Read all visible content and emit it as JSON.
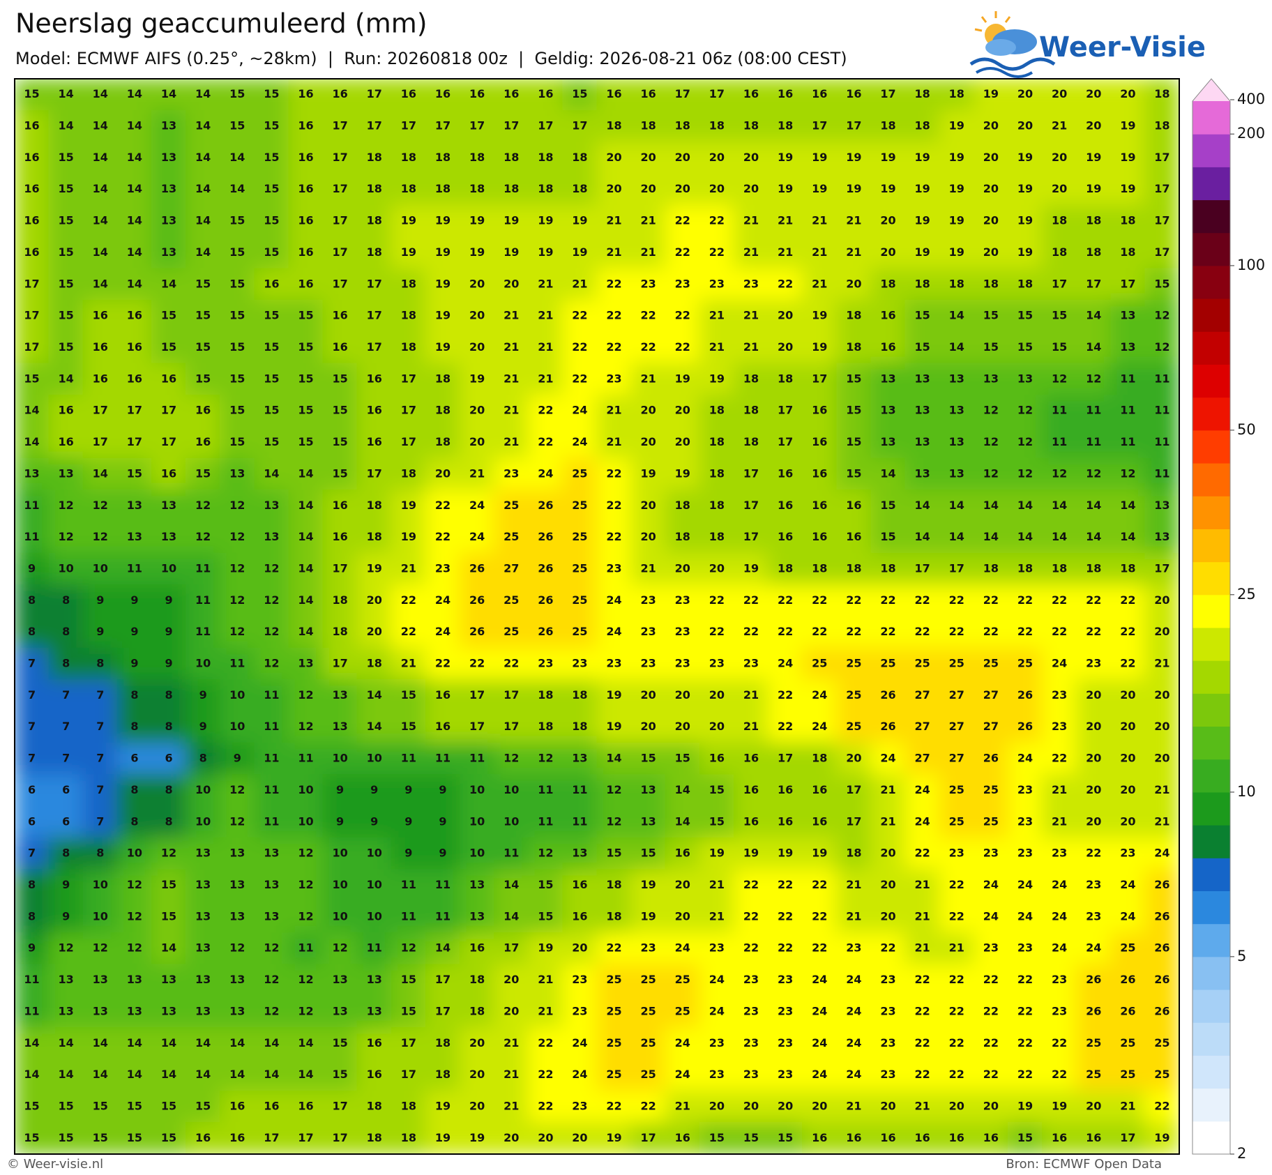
{
  "header": {
    "title": "Neerslag geaccumuleerd (mm)",
    "subtitle": "Model: ECMWF AIFS (0.25°, ~28km)  |  Run: 20260818 00z  |  Geldig: 2026-08-21 06z (08:00 CEST)"
  },
  "logo": {
    "text": "Weer-Visie"
  },
  "grid": {
    "rows": [
      [
        15,
        14,
        14,
        14,
        14,
        14,
        15,
        15,
        16,
        16,
        17,
        16,
        16,
        16,
        16,
        16,
        15,
        16,
        16,
        17,
        17,
        16,
        16,
        16,
        16,
        17,
        18,
        18,
        19,
        20,
        20,
        20,
        20,
        18
      ],
      [
        16,
        14,
        14,
        14,
        13,
        14,
        15,
        15,
        16,
        17,
        17,
        17,
        17,
        17,
        17,
        17,
        17,
        18,
        18,
        18,
        18,
        18,
        18,
        17,
        17,
        18,
        18,
        19,
        20,
        20,
        21,
        20,
        19,
        18
      ],
      [
        16,
        15,
        14,
        14,
        13,
        14,
        14,
        15,
        16,
        17,
        18,
        18,
        18,
        18,
        18,
        18,
        18,
        20,
        20,
        20,
        20,
        20,
        19,
        19,
        19,
        19,
        19,
        19,
        20,
        19,
        20,
        19,
        19,
        17
      ],
      [
        16,
        15,
        14,
        14,
        13,
        14,
        14,
        15,
        16,
        17,
        18,
        18,
        18,
        18,
        18,
        18,
        18,
        20,
        20,
        20,
        20,
        20,
        19,
        19,
        19,
        19,
        19,
        19,
        20,
        19,
        20,
        19,
        19,
        17
      ],
      [
        16,
        15,
        14,
        14,
        13,
        14,
        15,
        15,
        16,
        17,
        18,
        19,
        19,
        19,
        19,
        19,
        19,
        21,
        21,
        22,
        22,
        21,
        21,
        21,
        21,
        20,
        19,
        19,
        20,
        19,
        18,
        18,
        18,
        17
      ],
      [
        16,
        15,
        14,
        14,
        13,
        14,
        15,
        15,
        16,
        17,
        18,
        19,
        19,
        19,
        19,
        19,
        19,
        21,
        21,
        22,
        22,
        21,
        21,
        21,
        21,
        20,
        19,
        19,
        20,
        19,
        18,
        18,
        18,
        17
      ],
      [
        17,
        15,
        14,
        14,
        14,
        15,
        15,
        16,
        16,
        17,
        17,
        18,
        19,
        20,
        20,
        21,
        21,
        22,
        23,
        23,
        23,
        23,
        22,
        21,
        20,
        18,
        18,
        18,
        18,
        18,
        17,
        17,
        17,
        15
      ],
      [
        17,
        15,
        16,
        16,
        15,
        15,
        15,
        15,
        15,
        16,
        17,
        18,
        19,
        20,
        21,
        21,
        22,
        22,
        22,
        22,
        21,
        21,
        20,
        19,
        18,
        16,
        15,
        14,
        15,
        15,
        15,
        14,
        13,
        12
      ],
      [
        17,
        15,
        16,
        16,
        15,
        15,
        15,
        15,
        15,
        16,
        17,
        18,
        19,
        20,
        21,
        21,
        22,
        22,
        22,
        22,
        21,
        21,
        20,
        19,
        18,
        16,
        15,
        14,
        15,
        15,
        15,
        14,
        13,
        12
      ],
      [
        15,
        14,
        16,
        16,
        16,
        15,
        15,
        15,
        15,
        15,
        16,
        17,
        18,
        19,
        21,
        21,
        22,
        23,
        21,
        19,
        19,
        18,
        18,
        17,
        15,
        13,
        13,
        13,
        13,
        13,
        12,
        12,
        11,
        11
      ],
      [
        14,
        16,
        17,
        17,
        17,
        16,
        15,
        15,
        15,
        15,
        16,
        17,
        18,
        20,
        21,
        22,
        24,
        21,
        20,
        20,
        18,
        18,
        17,
        16,
        15,
        13,
        13,
        13,
        12,
        12,
        11,
        11,
        11,
        11
      ],
      [
        14,
        16,
        17,
        17,
        17,
        16,
        15,
        15,
        15,
        15,
        16,
        17,
        18,
        20,
        21,
        22,
        24,
        21,
        20,
        20,
        18,
        18,
        17,
        16,
        15,
        13,
        13,
        13,
        12,
        12,
        11,
        11,
        11,
        11
      ],
      [
        13,
        13,
        14,
        15,
        16,
        15,
        13,
        14,
        14,
        15,
        17,
        18,
        20,
        21,
        23,
        24,
        25,
        22,
        19,
        19,
        18,
        17,
        16,
        16,
        15,
        14,
        13,
        13,
        12,
        12,
        12,
        12,
        12,
        11
      ],
      [
        11,
        12,
        12,
        13,
        13,
        12,
        12,
        13,
        14,
        16,
        18,
        19,
        22,
        24,
        25,
        26,
        25,
        22,
        20,
        18,
        18,
        17,
        16,
        16,
        16,
        15,
        14,
        14,
        14,
        14,
        14,
        14,
        14,
        13
      ],
      [
        11,
        12,
        12,
        13,
        13,
        12,
        12,
        13,
        14,
        16,
        18,
        19,
        22,
        24,
        25,
        26,
        25,
        22,
        20,
        18,
        18,
        17,
        16,
        16,
        16,
        15,
        14,
        14,
        14,
        14,
        14,
        14,
        14,
        13
      ],
      [
        9,
        10,
        10,
        11,
        10,
        11,
        12,
        12,
        14,
        17,
        19,
        21,
        23,
        26,
        27,
        26,
        25,
        23,
        21,
        20,
        20,
        19,
        18,
        18,
        18,
        18,
        17,
        17,
        18,
        18,
        18,
        18,
        18,
        17
      ],
      [
        8,
        8,
        9,
        9,
        9,
        11,
        12,
        12,
        14,
        18,
        20,
        22,
        24,
        26,
        25,
        26,
        25,
        24,
        23,
        23,
        22,
        22,
        22,
        22,
        22,
        22,
        22,
        22,
        22,
        22,
        22,
        22,
        22,
        20
      ],
      [
        8,
        8,
        9,
        9,
        9,
        11,
        12,
        12,
        14,
        18,
        20,
        22,
        24,
        26,
        25,
        26,
        25,
        24,
        23,
        23,
        22,
        22,
        22,
        22,
        22,
        22,
        22,
        22,
        22,
        22,
        22,
        22,
        22,
        20
      ],
      [
        7,
        8,
        8,
        9,
        9,
        10,
        11,
        12,
        13,
        17,
        18,
        21,
        22,
        22,
        22,
        23,
        23,
        23,
        23,
        23,
        23,
        23,
        24,
        25,
        25,
        25,
        25,
        25,
        25,
        25,
        24,
        23,
        22,
        21
      ],
      [
        7,
        7,
        7,
        8,
        8,
        9,
        10,
        11,
        12,
        13,
        14,
        15,
        16,
        17,
        17,
        18,
        18,
        19,
        20,
        20,
        20,
        21,
        22,
        24,
        25,
        26,
        27,
        27,
        27,
        26,
        23,
        20,
        20,
        20
      ],
      [
        7,
        7,
        7,
        8,
        8,
        9,
        10,
        11,
        12,
        13,
        14,
        15,
        16,
        17,
        17,
        18,
        18,
        19,
        20,
        20,
        20,
        21,
        22,
        24,
        25,
        26,
        27,
        27,
        27,
        26,
        23,
        20,
        20,
        20
      ],
      [
        7,
        7,
        7,
        6,
        6,
        8,
        9,
        11,
        11,
        10,
        10,
        11,
        11,
        11,
        12,
        12,
        13,
        14,
        15,
        15,
        16,
        16,
        17,
        18,
        20,
        24,
        27,
        27,
        26,
        24,
        22,
        20,
        20,
        20
      ],
      [
        6,
        6,
        7,
        8,
        8,
        10,
        12,
        11,
        10,
        9,
        9,
        9,
        9,
        10,
        10,
        11,
        11,
        12,
        13,
        14,
        15,
        16,
        16,
        16,
        17,
        21,
        24,
        25,
        25,
        23,
        21,
        20,
        20,
        21
      ],
      [
        6,
        6,
        7,
        8,
        8,
        10,
        12,
        11,
        10,
        9,
        9,
        9,
        9,
        10,
        10,
        11,
        11,
        12,
        13,
        14,
        15,
        16,
        16,
        16,
        17,
        21,
        24,
        25,
        25,
        23,
        21,
        20,
        20,
        21
      ],
      [
        7,
        8,
        8,
        10,
        12,
        13,
        13,
        13,
        12,
        10,
        10,
        9,
        9,
        10,
        11,
        12,
        13,
        15,
        15,
        16,
        19,
        19,
        19,
        19,
        18,
        20,
        22,
        23,
        23,
        23,
        23,
        22,
        23,
        24
      ],
      [
        8,
        9,
        10,
        12,
        15,
        13,
        13,
        13,
        12,
        10,
        10,
        11,
        11,
        13,
        14,
        15,
        16,
        18,
        19,
        20,
        21,
        22,
        22,
        22,
        21,
        20,
        21,
        22,
        24,
        24,
        24,
        23,
        24,
        26
      ],
      [
        8,
        9,
        10,
        12,
        15,
        13,
        13,
        13,
        12,
        10,
        10,
        11,
        11,
        13,
        14,
        15,
        16,
        18,
        19,
        20,
        21,
        22,
        22,
        22,
        21,
        20,
        21,
        22,
        24,
        24,
        24,
        23,
        24,
        26
      ],
      [
        9,
        12,
        12,
        12,
        14,
        13,
        12,
        12,
        11,
        12,
        11,
        12,
        14,
        16,
        17,
        19,
        20,
        22,
        23,
        24,
        23,
        22,
        22,
        22,
        23,
        22,
        21,
        21,
        23,
        23,
        24,
        24,
        25,
        26
      ],
      [
        11,
        13,
        13,
        13,
        13,
        13,
        13,
        12,
        12,
        13,
        13,
        15,
        17,
        18,
        20,
        21,
        23,
        25,
        25,
        25,
        24,
        23,
        23,
        24,
        24,
        23,
        22,
        22,
        22,
        22,
        23,
        26,
        26,
        26
      ],
      [
        11,
        13,
        13,
        13,
        13,
        13,
        13,
        12,
        12,
        13,
        13,
        15,
        17,
        18,
        20,
        21,
        23,
        25,
        25,
        25,
        24,
        23,
        23,
        24,
        24,
        23,
        22,
        22,
        22,
        22,
        23,
        26,
        26,
        26
      ],
      [
        14,
        14,
        14,
        14,
        14,
        14,
        14,
        14,
        14,
        15,
        16,
        17,
        18,
        20,
        21,
        22,
        24,
        25,
        25,
        24,
        23,
        23,
        23,
        24,
        24,
        23,
        22,
        22,
        22,
        22,
        22,
        25,
        25,
        25
      ],
      [
        14,
        14,
        14,
        14,
        14,
        14,
        14,
        14,
        14,
        15,
        16,
        17,
        18,
        20,
        21,
        22,
        24,
        25,
        25,
        24,
        23,
        23,
        23,
        24,
        24,
        23,
        22,
        22,
        22,
        22,
        22,
        25,
        25,
        25
      ],
      [
        15,
        15,
        15,
        15,
        15,
        15,
        16,
        16,
        16,
        17,
        18,
        18,
        19,
        20,
        21,
        22,
        23,
        22,
        22,
        21,
        20,
        20,
        20,
        20,
        21,
        20,
        21,
        20,
        20,
        19,
        19,
        20,
        21,
        22
      ],
      [
        15,
        15,
        15,
        15,
        15,
        16,
        16,
        17,
        17,
        17,
        18,
        18,
        19,
        19,
        20,
        20,
        20,
        19,
        17,
        16,
        15,
        15,
        15,
        16,
        16,
        16,
        16,
        16,
        16,
        15,
        16,
        16,
        17,
        19
      ]
    ]
  },
  "colorbar": {
    "ticks": [
      2,
      5,
      10,
      25,
      50,
      100,
      200,
      400
    ],
    "log_scale": true,
    "colors": [
      "#ffffff",
      "#e8f2fc",
      "#d0e6fb",
      "#bcdcf8",
      "#a6d0f6",
      "#88c0f2",
      "#5eaaec",
      "#2b88de",
      "#1565c8",
      "#0a8030",
      "#1c9a1c",
      "#38ac20",
      "#58bc18",
      "#7cc80c",
      "#a4d800",
      "#cce800",
      "#ffff00",
      "#ffdd00",
      "#ffbb00",
      "#ff9200",
      "#ff6a00",
      "#ff3d00",
      "#ee1400",
      "#dd0000",
      "#c20000",
      "#a30000",
      "#880010",
      "#6a0018",
      "#4a0020",
      "#6a1fa0",
      "#a640c8",
      "#e56ad8",
      "#fdd8f3"
    ]
  },
  "footer": {
    "left": "© Weer-visie.nl",
    "right": "Bron: ECMWF Open Data"
  }
}
